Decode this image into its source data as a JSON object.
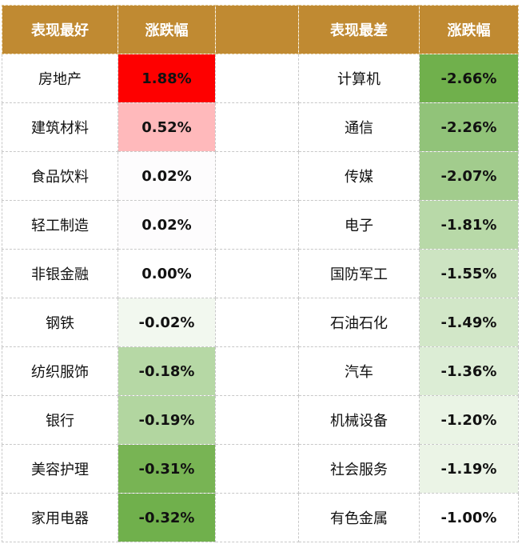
{
  "header": {
    "best_label": "表现最好",
    "best_change_label": "涨跌幅",
    "worst_label": "表现最差",
    "worst_change_label": "涨跌幅"
  },
  "best": [
    {
      "name": "房地产",
      "change": "1.88%",
      "color": "#fe0000"
    },
    {
      "name": "建筑材料",
      "change": "0.52%",
      "color": "#ffb9bb"
    },
    {
      "name": "食品饮料",
      "change": "0.02%",
      "color": "#fdfcfd"
    },
    {
      "name": "轻工制造",
      "change": "0.02%",
      "color": "#fdfcfd"
    },
    {
      "name": "非银金融",
      "change": "0.00%",
      "color": "#ffffff"
    },
    {
      "name": "钢铁",
      "change": "-0.02%",
      "color": "#f2f8ef"
    },
    {
      "name": "纺织服饰",
      "change": "-0.18%",
      "color": "#b6d8a5"
    },
    {
      "name": "银行",
      "change": "-0.19%",
      "color": "#b2d6a0"
    },
    {
      "name": "美容护理",
      "change": "-0.31%",
      "color": "#78b454"
    },
    {
      "name": "家用电器",
      "change": "-0.32%",
      "color": "#70b04c"
    }
  ],
  "worst": [
    {
      "name": "计算机",
      "change": "-2.66%",
      "color": "#70b04c"
    },
    {
      "name": "通信",
      "change": "-2.26%",
      "color": "#91c379"
    },
    {
      "name": "传媒",
      "change": "-2.07%",
      "color": "#a2cc8d"
    },
    {
      "name": "电子",
      "change": "-1.81%",
      "color": "#b8d9a8"
    },
    {
      "name": "国防军工",
      "change": "-1.55%",
      "color": "#cde4c2"
    },
    {
      "name": "石油石化",
      "change": "-1.49%",
      "color": "#d2e7c8"
    },
    {
      "name": "汽车",
      "change": "-1.36%",
      "color": "#dcedd5"
    },
    {
      "name": "机械设备",
      "change": "-1.20%",
      "color": "#eaf4e5"
    },
    {
      "name": "社会服务",
      "change": "-1.19%",
      "color": "#ebf4e6"
    },
    {
      "name": "有色金属",
      "change": "-1.00%",
      "color": "#ffffff"
    }
  ]
}
